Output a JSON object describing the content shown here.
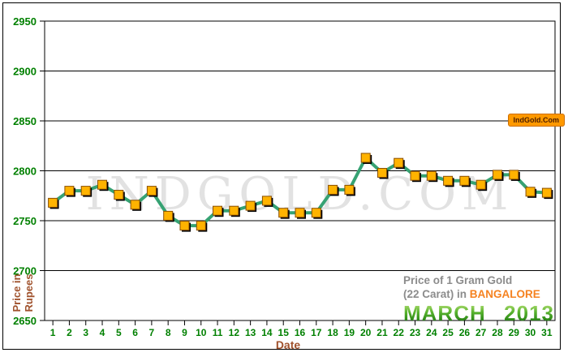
{
  "watermark": {
    "text": "INDGOLD.COM"
  },
  "badge": {
    "text": "IndGold.Com",
    "bg_color": "#ff9900"
  },
  "y_axis": {
    "line1": "Price in",
    "line2": "Rupees",
    "title_color": "#a0522d",
    "tick_color": "#008000"
  },
  "x_axis": {
    "title": "Date",
    "title_color": "#a0522d",
    "tick_color": "#008000"
  },
  "caption": {
    "line1": "Price of 1 Gram Gold",
    "line2_prefix": "(22 Carat) in ",
    "city": "BANGALORE",
    "city_color": "#f58220",
    "month": "MARCH",
    "year": "2013",
    "month_color": "#3c9a1e"
  },
  "chart_data": {
    "type": "line",
    "title": "Price of 1 Gram Gold (22 Carat) in Bangalore, March 2013",
    "xlabel": "Date",
    "ylabel": "Price in Rupees",
    "x": [
      1,
      2,
      3,
      4,
      5,
      6,
      7,
      8,
      9,
      10,
      11,
      12,
      13,
      14,
      15,
      16,
      17,
      18,
      19,
      20,
      21,
      22,
      23,
      24,
      25,
      26,
      27,
      28,
      29,
      30,
      31
    ],
    "values": [
      2768,
      2780,
      2780,
      2786,
      2776,
      2766,
      2780,
      2755,
      2745,
      2745,
      2760,
      2760,
      2765,
      2770,
      2758,
      2758,
      2758,
      2781,
      2781,
      2813,
      2798,
      2808,
      2795,
      2795,
      2790,
      2790,
      2786,
      2796,
      2796,
      2779,
      2778
    ],
    "ylim": [
      2650,
      2950
    ],
    "y_ticks": [
      2950,
      2900,
      2850,
      2800,
      2750,
      2700,
      2650
    ],
    "grid": true,
    "legend": "none",
    "line_color": "#36a273",
    "marker": "square",
    "marker_color": "#ffb300",
    "marker_edge_color": "#8a4f00",
    "marker_shadow_color": "#000000"
  }
}
